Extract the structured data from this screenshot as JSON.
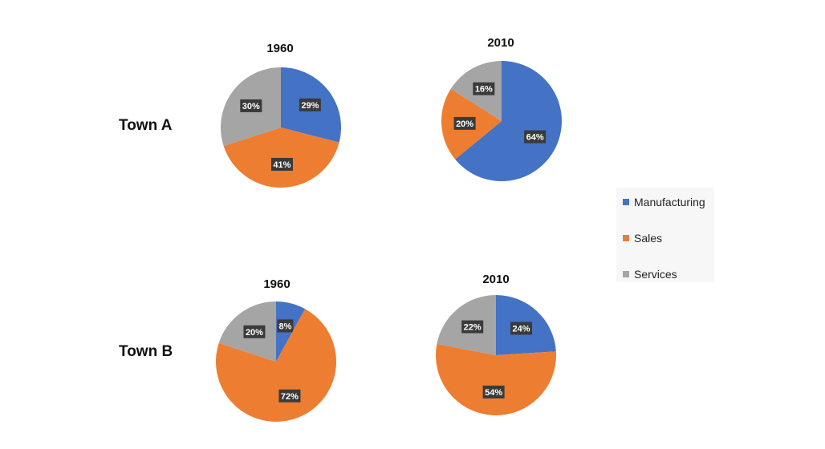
{
  "colors": {
    "Manufacturing": "#4472c4",
    "Sales": "#ed7d31",
    "Services": "#a5a5a5"
  },
  "legend": {
    "items": [
      "Manufacturing",
      "Sales",
      "Services"
    ]
  },
  "chart_data": [
    {
      "type": "pie",
      "town": "Town A",
      "title": "1960",
      "categories": [
        "Manufacturing",
        "Sales",
        "Services"
      ],
      "values": [
        29,
        41,
        30
      ],
      "labels": [
        "29%",
        "41%",
        "30%"
      ]
    },
    {
      "type": "pie",
      "town": "Town A",
      "title": "2010",
      "categories": [
        "Manufacturing",
        "Sales",
        "Services"
      ],
      "values": [
        64,
        20,
        16
      ],
      "labels": [
        "64%",
        "20%",
        "16%"
      ]
    },
    {
      "type": "pie",
      "town": "Town B",
      "title": "1960",
      "categories": [
        "Manufacturing",
        "Sales",
        "Services"
      ],
      "values": [
        8,
        72,
        20
      ],
      "labels": [
        "8%",
        "72%",
        "20%"
      ]
    },
    {
      "type": "pie",
      "town": "Town B",
      "title": "2010",
      "categories": [
        "Manufacturing",
        "Sales",
        "Services"
      ],
      "values": [
        24,
        54,
        22
      ],
      "labels": [
        "24%",
        "54%",
        "22%"
      ]
    }
  ]
}
